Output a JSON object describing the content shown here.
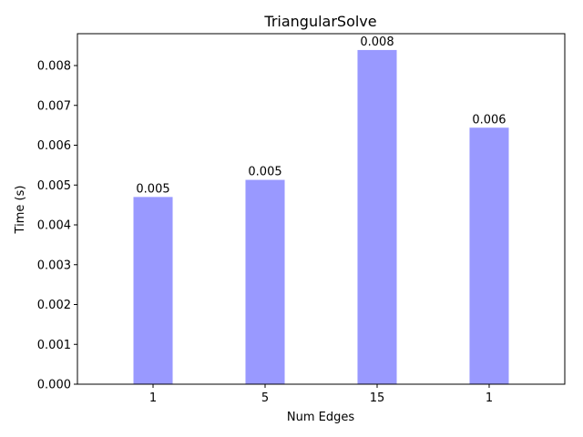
{
  "chart_data": {
    "type": "bar",
    "title": "TriangularSolve",
    "xlabel": "Num Edges",
    "ylabel": "Time (s)",
    "categories": [
      "1",
      "5",
      "15",
      "1"
    ],
    "values": [
      0.0047,
      0.00513,
      0.00839,
      0.00644
    ],
    "bar_labels": [
      "0.005",
      "0.005",
      "0.008",
      "0.006"
    ],
    "ylim": [
      0,
      0.0088
    ],
    "yticks": [
      "0.000",
      "0.001",
      "0.002",
      "0.003",
      "0.004",
      "0.005",
      "0.006",
      "0.007",
      "0.008"
    ],
    "ytick_values": [
      0,
      0.001,
      0.002,
      0.003,
      0.004,
      0.005,
      0.006,
      0.007,
      0.008
    ],
    "grid": false,
    "legend": "none",
    "bar_color": "#9999ff"
  }
}
